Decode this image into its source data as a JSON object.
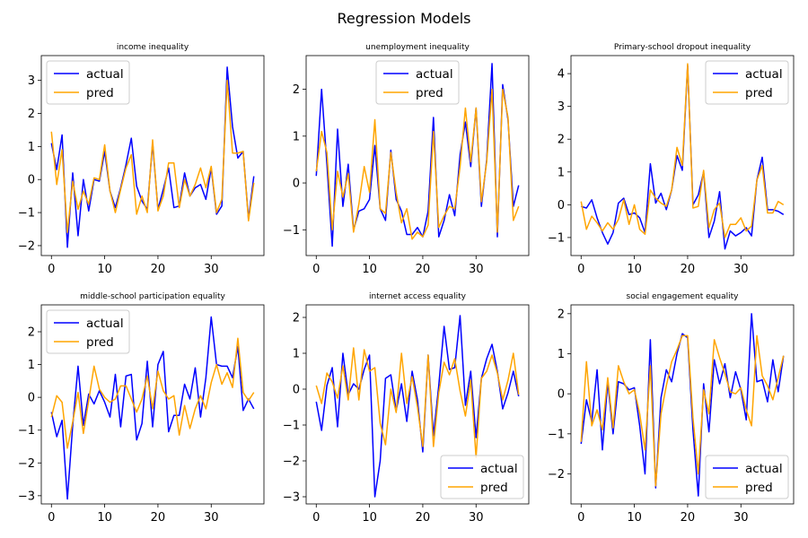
{
  "figure": {
    "title": "Regression Models"
  },
  "colors": {
    "actual": "#0000ff",
    "pred": "#ffa500"
  },
  "chart_data": [
    {
      "type": "line",
      "title": "income inequality",
      "xlabel": "",
      "ylabel": "",
      "xlim": [
        -1.9,
        39.9
      ],
      "ylim": [
        -2.3,
        3.75
      ],
      "xticks": [
        0,
        10,
        20,
        30
      ],
      "yticks": [
        -2,
        -1,
        0,
        1,
        2,
        3
      ],
      "legend": "upper-left",
      "series": [
        {
          "name": "actual",
          "color": "#0000ff",
          "values": [
            1.1,
            0.3,
            1.35,
            -2.05,
            0.2,
            -1.7,
            0.0,
            -0.95,
            0.0,
            -0.05,
            0.85,
            -0.35,
            -0.85,
            -0.25,
            0.45,
            1.25,
            -0.2,
            -0.65,
            -0.9,
            1.1,
            -0.9,
            -0.3,
            0.35,
            -0.85,
            -0.8,
            0.2,
            -0.5,
            -0.25,
            -0.15,
            -0.6,
            0.35,
            -1.05,
            -0.8,
            3.4,
            1.6,
            0.65,
            0.85,
            -1.2,
            0.1
          ]
        },
        {
          "name": "pred",
          "color": "#ffa500",
          "values": [
            1.45,
            -0.15,
            0.9,
            -1.6,
            -0.05,
            -0.9,
            -0.35,
            -0.75,
            0.05,
            0.0,
            1.05,
            -0.35,
            -1.0,
            -0.3,
            0.35,
            0.75,
            -1.05,
            -0.5,
            -1.0,
            1.2,
            -0.95,
            -0.5,
            0.5,
            0.5,
            -0.85,
            0.0,
            -0.5,
            -0.15,
            0.35,
            -0.25,
            0.4,
            -1.0,
            -0.6,
            3.0,
            0.8,
            0.8,
            0.85,
            -1.25,
            -0.1
          ]
        }
      ]
    },
    {
      "type": "line",
      "title": "unemployment inequality",
      "xlabel": "",
      "ylabel": "",
      "xlim": [
        -1.9,
        39.9
      ],
      "ylim": [
        -1.55,
        2.72
      ],
      "xticks": [
        0,
        10,
        20,
        30
      ],
      "yticks": [
        -1,
        0,
        1,
        2
      ],
      "legend": "upper-center",
      "series": [
        {
          "name": "actual",
          "color": "#0000ff",
          "values": [
            0.15,
            2.0,
            0.4,
            -1.35,
            1.15,
            -0.5,
            0.4,
            -1.0,
            -0.6,
            -0.55,
            -0.35,
            0.8,
            -0.55,
            -0.8,
            0.7,
            -0.35,
            -0.6,
            -1.1,
            -1.1,
            -0.95,
            -1.15,
            -0.6,
            1.4,
            -1.15,
            -0.8,
            -0.25,
            -0.7,
            0.6,
            1.3,
            0.35,
            1.6,
            -0.5,
            0.5,
            2.55,
            -1.15,
            2.1,
            1.35,
            -0.5,
            -0.05
          ]
        },
        {
          "name": "pred",
          "color": "#ffa500",
          "values": [
            0.25,
            1.1,
            0.65,
            -1.0,
            0.25,
            -0.3,
            0.2,
            -1.05,
            -0.45,
            0.35,
            -0.2,
            1.35,
            -0.55,
            -0.65,
            0.65,
            -0.2,
            -0.85,
            -0.55,
            -1.2,
            -1.05,
            -1.15,
            -0.9,
            1.1,
            -0.95,
            -0.7,
            -0.5,
            -0.55,
            0.35,
            1.6,
            0.45,
            1.6,
            -0.4,
            0.45,
            2.0,
            -1.05,
            2.0,
            1.4,
            -0.8,
            -0.5
          ]
        }
      ]
    },
    {
      "type": "line",
      "title": "Primary-school dropout inequality",
      "xlabel": "",
      "ylabel": "",
      "xlim": [
        -1.9,
        39.9
      ],
      "ylim": [
        -1.55,
        4.55
      ],
      "xticks": [
        0,
        10,
        20,
        30
      ],
      "yticks": [
        -1,
        0,
        1,
        2,
        3,
        4
      ],
      "legend": "upper-right",
      "series": [
        {
          "name": "actual",
          "color": "#0000ff",
          "values": [
            -0.05,
            -0.1,
            0.15,
            -0.4,
            -0.85,
            -1.2,
            -0.85,
            0.05,
            0.2,
            -0.3,
            -0.25,
            -0.4,
            -0.85,
            1.25,
            0.05,
            0.35,
            -0.15,
            0.45,
            1.5,
            1.05,
            4.25,
            0.0,
            0.3,
            1.0,
            -1.0,
            -0.5,
            0.4,
            -1.35,
            -0.8,
            -0.95,
            -0.85,
            -0.7,
            -0.95,
            0.75,
            1.45,
            -0.15,
            -0.15,
            -0.2,
            -0.3
          ]
        },
        {
          "name": "pred",
          "color": "#ffa500",
          "values": [
            0.1,
            -0.75,
            -0.35,
            -0.55,
            -0.8,
            -0.55,
            -0.75,
            -0.45,
            0.15,
            -0.6,
            0.0,
            -0.75,
            -0.9,
            0.45,
            0.2,
            0.05,
            -0.05,
            0.45,
            1.75,
            1.2,
            4.3,
            -0.1,
            -0.05,
            1.05,
            -0.7,
            -0.15,
            0.05,
            -1.0,
            -0.6,
            -0.6,
            -0.4,
            -0.8,
            -0.65,
            0.75,
            1.2,
            -0.25,
            -0.25,
            0.1,
            0.0
          ]
        }
      ]
    },
    {
      "type": "line",
      "title": "middle-school participation equality",
      "xlabel": "",
      "ylabel": "",
      "xlim": [
        -1.9,
        39.9
      ],
      "ylim": [
        -3.25,
        2.82
      ],
      "xticks": [
        0,
        10,
        20,
        30
      ],
      "yticks": [
        -3,
        -2,
        -1,
        0,
        1,
        2
      ],
      "legend": "upper-left",
      "series": [
        {
          "name": "actual",
          "color": "#0000ff",
          "values": [
            -0.45,
            -1.2,
            -0.7,
            -3.1,
            -0.85,
            0.95,
            -0.85,
            0.1,
            -0.2,
            0.2,
            -0.15,
            -0.6,
            0.7,
            -0.9,
            0.65,
            0.7,
            -1.3,
            -0.8,
            1.1,
            -0.9,
            1.0,
            1.4,
            -1.05,
            -0.55,
            -0.55,
            0.4,
            -0.05,
            0.9,
            -0.6,
            0.6,
            2.45,
            1.0,
            0.95,
            0.95,
            0.6,
            1.55,
            -0.4,
            -0.05,
            -0.35
          ]
        },
        {
          "name": "pred",
          "color": "#ffa500",
          "values": [
            -0.6,
            0.05,
            -0.15,
            -1.55,
            -0.75,
            0.15,
            -1.1,
            -0.1,
            0.95,
            0.25,
            0.0,
            -0.15,
            -0.05,
            0.35,
            0.35,
            -0.05,
            -0.45,
            -0.05,
            0.65,
            -0.35,
            0.8,
            0.2,
            -0.05,
            0.05,
            -1.15,
            -0.25,
            -0.95,
            -0.35,
            0.05,
            -0.35,
            0.45,
            1.0,
            0.4,
            0.75,
            0.3,
            1.8,
            0.15,
            -0.1,
            0.15
          ]
        }
      ]
    },
    {
      "type": "line",
      "title": "internet access equality",
      "xlabel": "",
      "ylabel": "",
      "xlim": [
        -1.9,
        39.9
      ],
      "ylim": [
        -3.2,
        2.35
      ],
      "xticks": [
        0,
        10,
        20,
        30
      ],
      "yticks": [
        -3,
        -2,
        -1,
        0,
        1,
        2
      ],
      "legend": "lower-right",
      "series": [
        {
          "name": "actual",
          "color": "#0000ff",
          "values": [
            -0.35,
            -1.15,
            0.1,
            0.6,
            -1.05,
            1.0,
            -0.15,
            0.15,
            0.0,
            0.55,
            0.95,
            -3.0,
            -2.0,
            0.3,
            0.4,
            -0.6,
            0.15,
            -0.9,
            0.5,
            -0.3,
            -1.75,
            0.95,
            -1.3,
            0.1,
            1.75,
            0.55,
            0.6,
            2.05,
            -0.45,
            0.5,
            -1.35,
            0.3,
            0.85,
            1.25,
            0.5,
            -0.55,
            -0.1,
            0.5,
            -0.2
          ]
        },
        {
          "name": "pred",
          "color": "#ffa500",
          "values": [
            0.1,
            -0.4,
            0.45,
            0.2,
            -0.25,
            0.65,
            -0.3,
            1.15,
            -0.3,
            1.1,
            0.5,
            0.6,
            -0.95,
            -1.55,
            0.0,
            -0.65,
            1.0,
            -0.4,
            0.35,
            -0.5,
            -1.6,
            0.95,
            -1.6,
            -0.1,
            0.75,
            0.4,
            0.85,
            -0.05,
            -0.75,
            0.25,
            -1.9,
            0.3,
            0.5,
            0.95,
            0.45,
            -0.3,
            0.25,
            1.0,
            -0.15
          ]
        }
      ]
    },
    {
      "type": "line",
      "title": "social engagement equality",
      "xlabel": "",
      "ylabel": "",
      "xlim": [
        -1.9,
        39.9
      ],
      "ylim": [
        -2.75,
        2.22
      ],
      "xticks": [
        0,
        10,
        20,
        30
      ],
      "yticks": [
        -2,
        -1,
        0,
        1,
        2
      ],
      "legend": "lower-right",
      "series": [
        {
          "name": "actual",
          "color": "#0000ff",
          "values": [
            -1.25,
            -0.15,
            -0.7,
            0.6,
            -1.4,
            0.3,
            -1.0,
            0.3,
            0.25,
            0.1,
            0.15,
            -0.8,
            -2.0,
            1.35,
            -2.35,
            -0.1,
            0.6,
            0.3,
            1.0,
            1.5,
            1.4,
            -0.9,
            -2.55,
            0.25,
            -0.95,
            0.85,
            0.25,
            0.75,
            -0.1,
            0.55,
            0.1,
            -0.65,
            2.0,
            0.3,
            0.35,
            -0.2,
            0.85,
            0.05,
            0.95
          ]
        },
        {
          "name": "pred",
          "color": "#ffa500",
          "values": [
            -1.2,
            0.8,
            -0.8,
            -0.4,
            -0.9,
            0.4,
            -0.85,
            0.7,
            0.3,
            0.0,
            0.1,
            -0.5,
            -1.4,
            0.7,
            -2.3,
            -0.5,
            0.2,
            0.8,
            1.1,
            1.45,
            1.45,
            -0.6,
            -2.0,
            0.1,
            -0.5,
            1.35,
            0.9,
            0.5,
            0.05,
            0.0,
            0.15,
            -0.4,
            -0.8,
            1.45,
            0.45,
            0.2,
            -0.15,
            0.4,
            0.95
          ]
        }
      ]
    }
  ]
}
